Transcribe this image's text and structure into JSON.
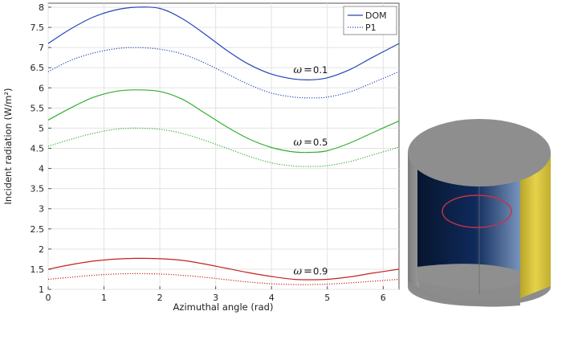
{
  "chart_data": {
    "type": "line",
    "xlabel": "Azimuthal angle (rad)",
    "ylabel": "Incident radiation (W/m²)",
    "xlim": [
      0,
      6.2832
    ],
    "ylim": [
      1,
      8.1
    ],
    "xticks": [
      "0",
      "1",
      "2",
      "3",
      "4",
      "5",
      "6"
    ],
    "yticks": [
      "1",
      "1.5",
      "2",
      "2.5",
      "3",
      "3.5",
      "4",
      "4.5",
      "5",
      "5.5",
      "6",
      "6.5",
      "7",
      "7.5",
      "8"
    ],
    "grid": true,
    "legend": {
      "placement": "top-right",
      "entries": [
        {
          "label": "DOM",
          "style": "solid"
        },
        {
          "label": "P1",
          "style": "dotted"
        }
      ]
    },
    "x": [
      0,
      0.4,
      0.8,
      1.2,
      1.5708,
      2.0,
      2.4,
      2.8,
      3.2,
      3.6,
      4.0,
      4.4,
      4.7124,
      5.0,
      5.4,
      5.8,
      6.2832
    ],
    "series": [
      {
        "group": "0.1",
        "style": "solid",
        "color": "#2645b8",
        "values": [
          7.1,
          7.46,
          7.75,
          7.93,
          8.0,
          7.97,
          7.72,
          7.34,
          6.93,
          6.58,
          6.34,
          6.22,
          6.2,
          6.25,
          6.45,
          6.75,
          7.1
        ]
      },
      {
        "group": "0.1",
        "style": "dotted",
        "color": "#2645b8",
        "values": [
          6.4,
          6.68,
          6.86,
          6.97,
          7.0,
          6.96,
          6.84,
          6.62,
          6.35,
          6.08,
          5.87,
          5.77,
          5.75,
          5.77,
          5.9,
          6.12,
          6.4
        ]
      },
      {
        "group": "0.5",
        "style": "solid",
        "color": "#32b032",
        "values": [
          5.2,
          5.5,
          5.76,
          5.91,
          5.95,
          5.91,
          5.72,
          5.38,
          5.03,
          4.73,
          4.52,
          4.41,
          4.4,
          4.44,
          4.63,
          4.88,
          5.18
        ]
      },
      {
        "group": "0.5",
        "style": "dotted",
        "color": "#32b032",
        "values": [
          4.55,
          4.72,
          4.87,
          4.97,
          5.0,
          4.97,
          4.87,
          4.7,
          4.5,
          4.3,
          4.14,
          4.06,
          4.05,
          4.07,
          4.17,
          4.33,
          4.53
        ]
      },
      {
        "group": "0.9",
        "style": "solid",
        "color": "#c42222",
        "values": [
          1.5,
          1.61,
          1.7,
          1.75,
          1.77,
          1.76,
          1.72,
          1.63,
          1.52,
          1.41,
          1.32,
          1.25,
          1.24,
          1.25,
          1.31,
          1.4,
          1.5
        ]
      },
      {
        "group": "0.9",
        "style": "dotted",
        "color": "#c42222",
        "values": [
          1.25,
          1.3,
          1.35,
          1.38,
          1.39,
          1.38,
          1.35,
          1.3,
          1.24,
          1.18,
          1.14,
          1.12,
          1.12,
          1.13,
          1.16,
          1.2,
          1.25
        ]
      }
    ],
    "annotations": [
      {
        "symbol": "ω",
        "relation": "=",
        "value": "0.1",
        "x": 4.45,
        "y": 6.44
      },
      {
        "symbol": "ω",
        "relation": "=",
        "value": "0.5",
        "x": 4.45,
        "y": 4.65
      },
      {
        "symbol": "ω",
        "relation": "=",
        "value": "0.9",
        "x": 4.45,
        "y": 1.45
      }
    ]
  },
  "inset_figure": {
    "subject": "cylinder-3d-render",
    "colors": {
      "top": "#8e8e8e",
      "side": "#8a8a8a",
      "interior_dark": "#0a1a3a",
      "interior_light": "#4a6fa0",
      "right_strip": "#d8c43a",
      "ring": "#c8324a"
    }
  }
}
